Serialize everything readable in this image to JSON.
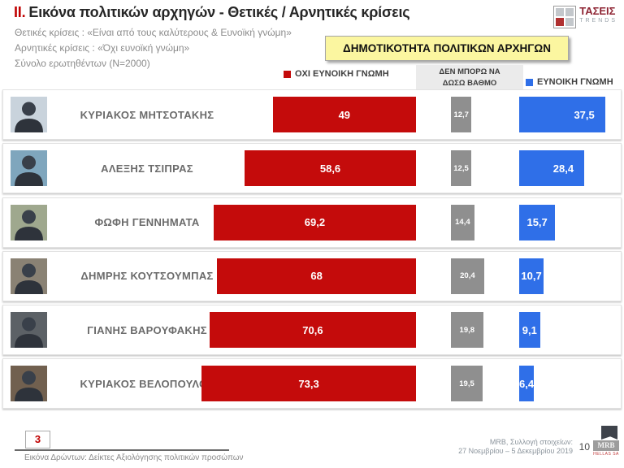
{
  "header": {
    "title_prefix": "II.",
    "title": "Εικόνα πολιτικών αρχηγών  - Θετικές / Αρνητικές κρίσεις",
    "subtitles": [
      "Θετικές κρίσεις : «Είναι από τους καλύτερους &  Ευνοϊκή γνώμη»",
      "Αρνητικές κρίσεις : «Όχι ευνοϊκή γνώμη»",
      "Σύνολο ερωτηθέντων (N=2000)"
    ],
    "banner": "ΔΗΜΟΤΙΚΟΤΗΤΑ ΠΟΛΙΤΙΚΩΝ ΑΡΧΗΓΩΝ",
    "brand": {
      "line1": "ΤΑΣΕΙΣ",
      "line2": "TRENDS"
    }
  },
  "legend": {
    "negative": "ΟΧΙ ΕΥΝΟΙΚΗ ΓΝΩΜΗ",
    "neutral_line1": "ΔΕΝ ΜΠΟΡΩ ΝΑ",
    "neutral_line2": "ΔΩΣΩ ΒΑΘΜΟ",
    "positive": "ΕΥΝΟΙΚΗ ΓΝΩΜΗ"
  },
  "colors": {
    "negative": "#C40B0B",
    "neutral": "#8F8F8F",
    "positive": "#2F6FE8",
    "banner_bg": "#FBF6A0",
    "accent_red": "#C00000"
  },
  "chart_data": {
    "type": "bar",
    "orientation": "horizontal",
    "title": "ΔΗΜΟΤΙΚΟΤΗΤΑ ΠΟΛΙΤΙΚΩΝ ΑΡΧΗΓΩΝ",
    "categories": [
      "ΚΥΡΙΑΚΟΣ ΜΗΤΣΟΤΑΚΗΣ",
      "ΑΛΕΞΗΣ ΤΣΙΠΡΑΣ",
      "ΦΩΦΗ ΓΕΝΝΗΜΑΤΑ",
      "ΔΗΜΡΗΣ ΚΟΥΤΣΟΥΜΠΑΣ",
      "ΓΙΑΝΗΣ ΒΑΡΟΥΦΑΚΗΣ",
      "ΚΥΡΙΑΚΟΣ ΒΕΛΟΠΟΥΛΟΣ"
    ],
    "series": [
      {
        "name": "ΟΧΙ ΕΥΝΟΙΚΗ ΓΝΩΜΗ",
        "color": "#C40B0B",
        "values": [
          49,
          58.6,
          69.2,
          68,
          70.6,
          73.3
        ],
        "labels": [
          "49",
          "58,6",
          "69,2",
          "68",
          "70,6",
          "73,3"
        ]
      },
      {
        "name": "ΔΕΝ ΜΠΟΡΩ ΝΑ ΔΩΣΩ ΒΑΘΜΟ",
        "color": "#8F8F8F",
        "values": [
          12.7,
          12.5,
          14.4,
          20.4,
          19.8,
          19.5
        ],
        "labels": [
          "12,7",
          "12,5",
          "14,4",
          "20,4",
          "19,8",
          "19,5"
        ]
      },
      {
        "name": "ΕΥΝΟΙΚΗ ΓΝΩΜΗ",
        "color": "#2F6FE8",
        "values": [
          37.5,
          28.4,
          15.7,
          10.7,
          9.1,
          6.4
        ],
        "labels": [
          "37,5",
          "28,4",
          "15,7",
          "10,7",
          "9,1",
          "6,4"
        ]
      }
    ],
    "xlim": [
      0,
      100
    ],
    "value_format": "percent with comma decimal",
    "legend_position": "top"
  },
  "photos": [
    "#c9d3dc",
    "#7fa6bd",
    "#9fa88e",
    "#8a8274",
    "#5c6166",
    "#71604f"
  ],
  "footer": {
    "section_number": "3",
    "caption": "Εικόνα Δρώντων: Δείκτες Αξιολόγησης πολιτικών προσώπων",
    "source_line1": "MRB, Συλλογή στοιχείων:",
    "source_line2": "27 Νοεμβρίου – 5 Δεκεμβρίου 2019",
    "page_number": "10",
    "mrb_logo": {
      "text": "MRB",
      "sub": "HELLAS SA"
    }
  }
}
